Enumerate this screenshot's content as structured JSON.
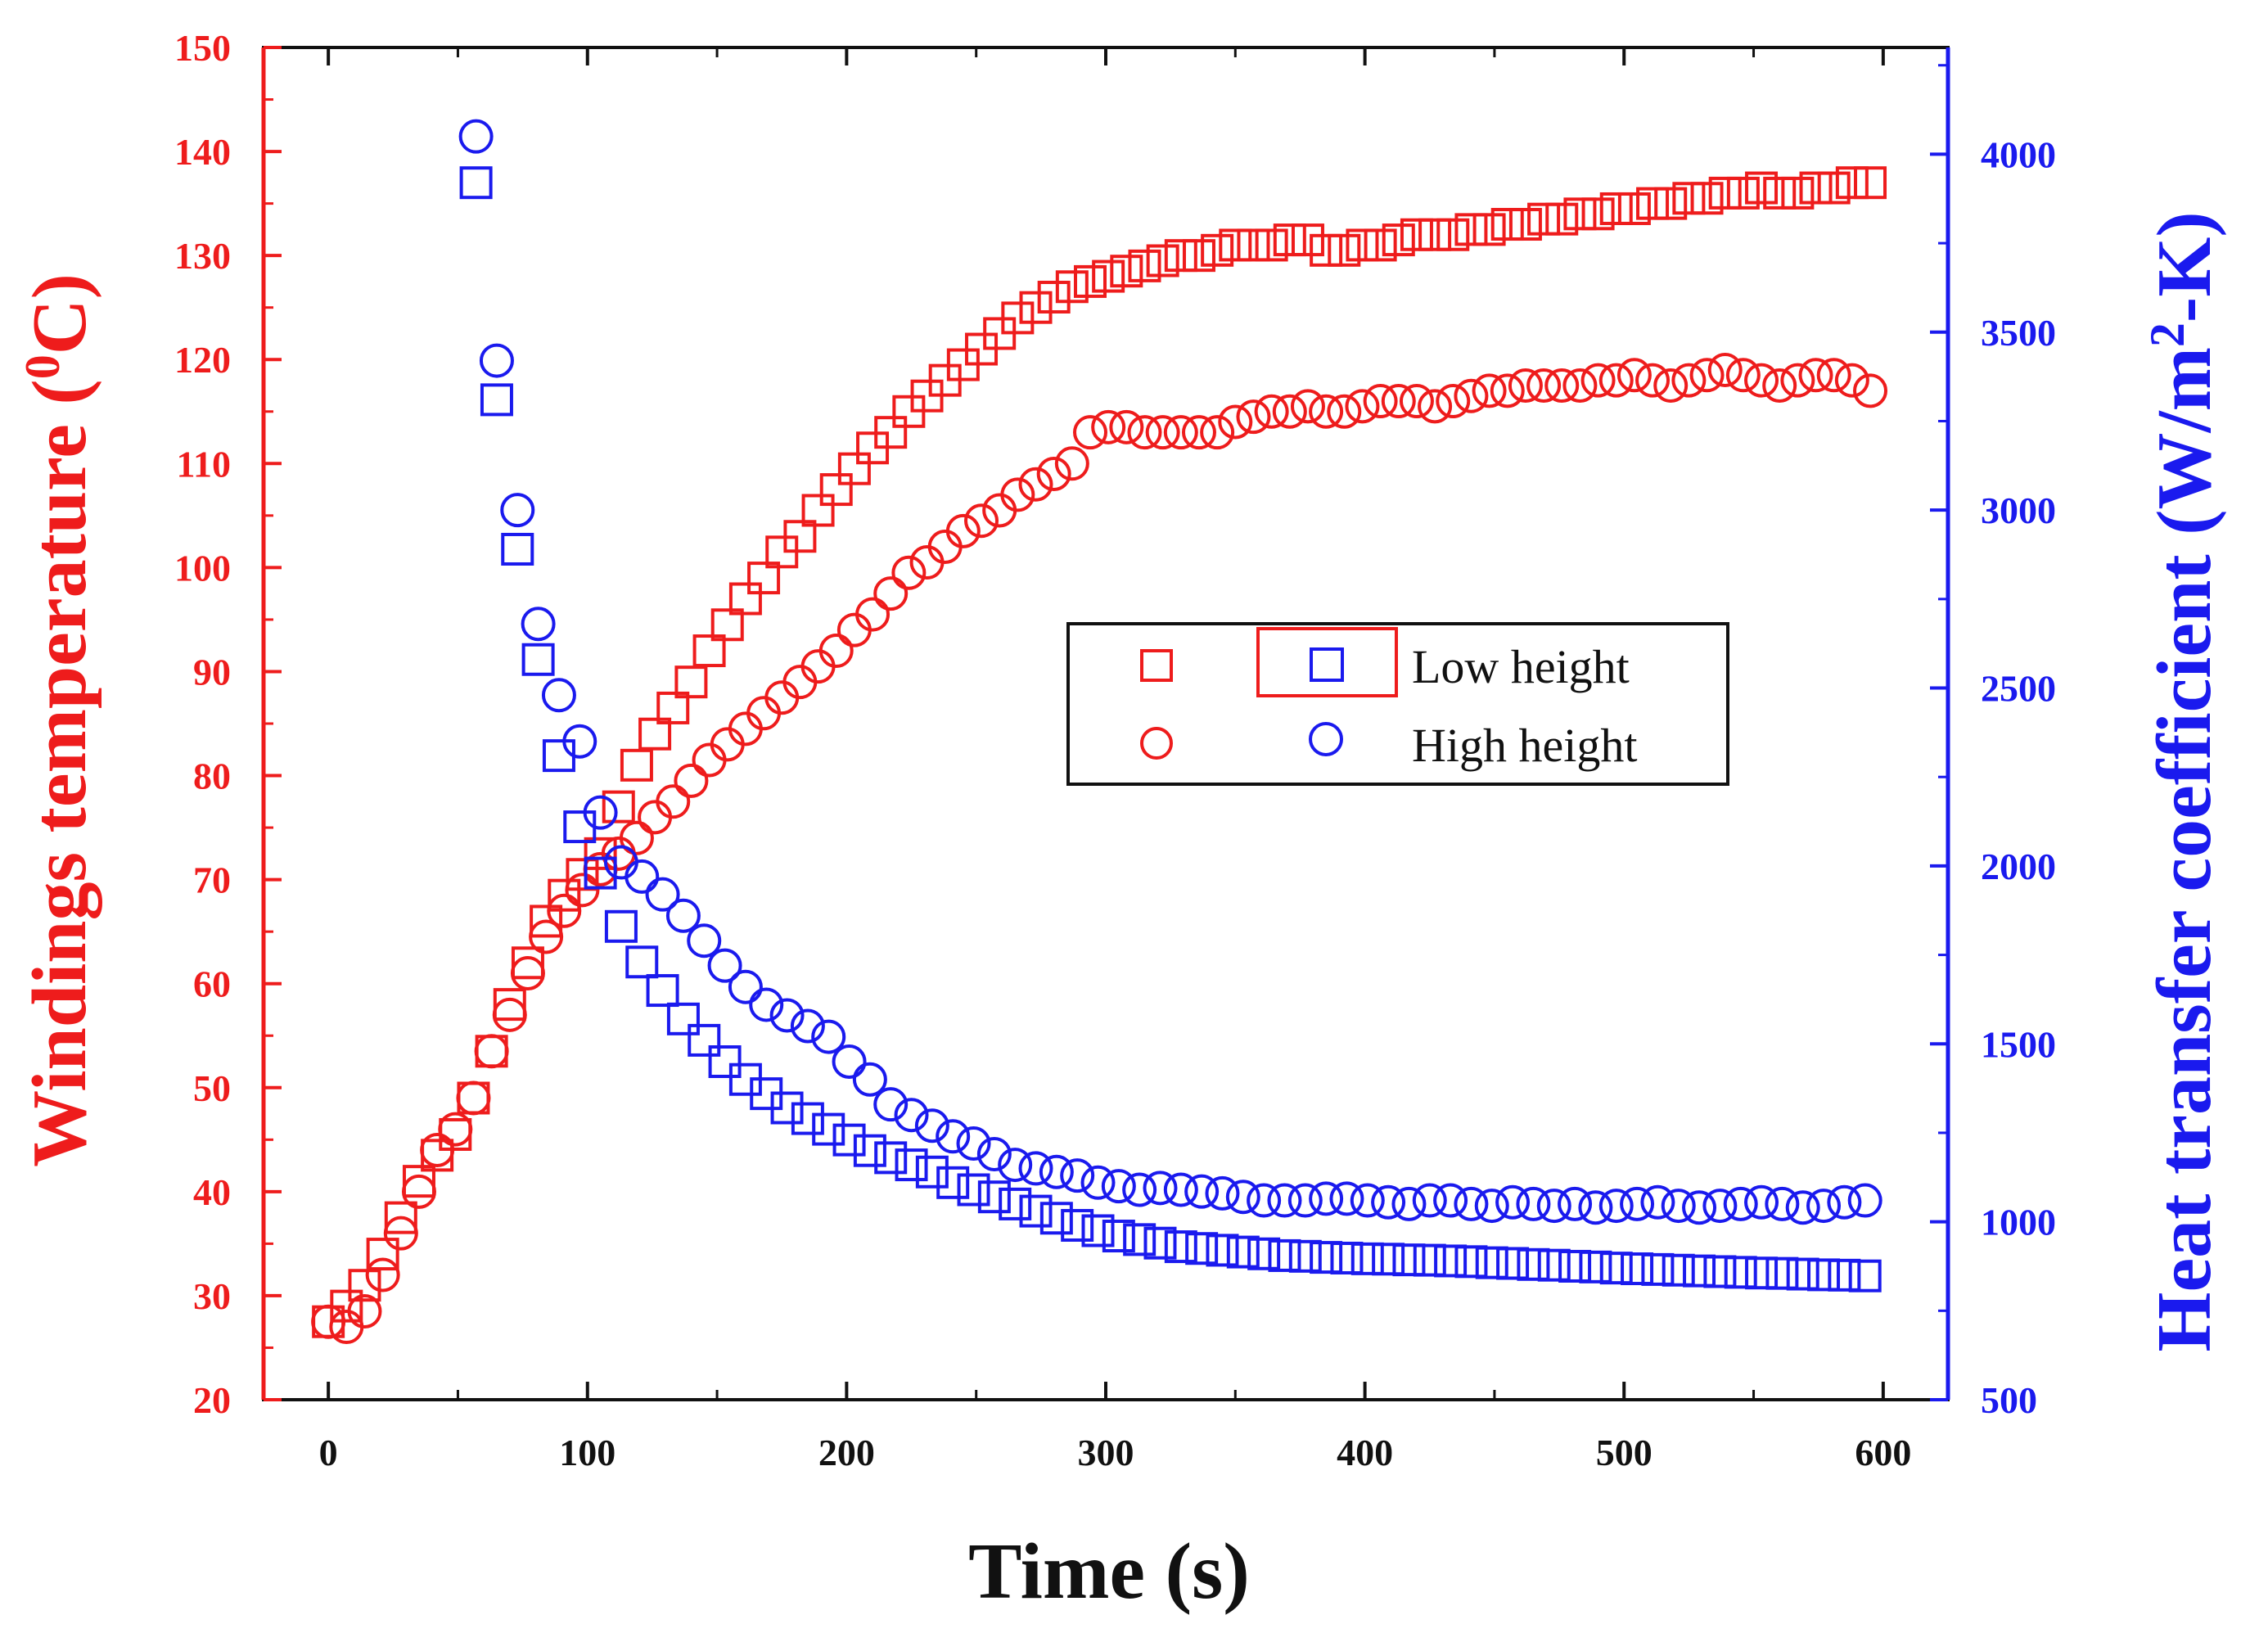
{
  "chart_data": {
    "type": "scatter",
    "title": "",
    "xlabel": "Time (s)",
    "ylabel_left": "Windings temperature (",
    "ylabel_left_sup": "0",
    "ylabel_left_tail": "C)",
    "ylabel_right": "Heat transfer coefficient (W/m",
    "ylabel_right_sup": "2",
    "ylabel_right_tail": "-K)",
    "xlim": [
      -25,
      625
    ],
    "ylim_left": [
      20,
      150
    ],
    "ylim_right": [
      500,
      4300
    ],
    "x_ticks": [
      "0",
      "100",
      "200",
      "300",
      "400",
      "500",
      "600"
    ],
    "y_left_ticks": [
      "20",
      "30",
      "40",
      "50",
      "60",
      "70",
      "80",
      "90",
      "100",
      "110",
      "120",
      "130",
      "140",
      "150"
    ],
    "y_right_ticks": [
      "500",
      "1000",
      "1500",
      "2000",
      "2500",
      "3000",
      "3500",
      "4000"
    ],
    "colors": {
      "temperature": "#ee1c1c",
      "htc": "#1a1aee",
      "axis": "#111111"
    },
    "legend": {
      "position": "center-right",
      "entries": [
        {
          "label": "Low height",
          "marker": "square"
        },
        {
          "label": "High height",
          "marker": "circle"
        }
      ]
    },
    "series": [
      {
        "name": "Windings temperature - Low height",
        "axis": "left",
        "marker": "square",
        "color": "#ee1c1c",
        "x": [
          0,
          7,
          14,
          21,
          28,
          35,
          42,
          49,
          56,
          63,
          70,
          77,
          84,
          91,
          98,
          105,
          112,
          119,
          126,
          133,
          140,
          147,
          154,
          161,
          168,
          175,
          182,
          189,
          196,
          203,
          210,
          217,
          224,
          231,
          238,
          245,
          252,
          259,
          266,
          273,
          280,
          287,
          294,
          301,
          308,
          315,
          322,
          329,
          336,
          343,
          350,
          357,
          364,
          371,
          378,
          385,
          392,
          399,
          406,
          413,
          420,
          427,
          434,
          441,
          448,
          455,
          462,
          469,
          476,
          483,
          490,
          497,
          504,
          511,
          518,
          525,
          532,
          539,
          546,
          553,
          560,
          567,
          574,
          581,
          588,
          595
        ],
        "y": [
          27.5,
          29,
          31,
          34,
          37.5,
          41,
          43.5,
          45.5,
          49,
          53.5,
          58,
          62,
          66,
          68.5,
          70.5,
          72.5,
          77,
          81,
          84,
          86.5,
          89,
          92,
          94.5,
          97,
          99,
          101.5,
          103,
          105.5,
          107.5,
          109.5,
          111.5,
          113,
          115,
          116.5,
          118,
          119.5,
          121,
          122.5,
          124,
          125,
          126,
          127,
          127.5,
          128,
          128.5,
          129,
          129.5,
          130,
          130,
          130.5,
          131,
          131,
          131,
          131.5,
          131.5,
          130.5,
          130.5,
          131,
          131,
          131.5,
          132,
          132,
          132,
          132.5,
          132.5,
          133,
          133,
          133.5,
          133.5,
          134,
          134,
          134.5,
          134.5,
          135,
          135,
          135.5,
          135.5,
          136,
          136,
          136.5,
          136,
          136,
          136.5,
          136.5,
          137,
          137
        ]
      },
      {
        "name": "Windings temperature - High height",
        "axis": "left",
        "marker": "circle",
        "color": "#ee1c1c",
        "x": [
          0,
          7,
          14,
          21,
          28,
          35,
          42,
          49,
          56,
          63,
          70,
          77,
          84,
          91,
          98,
          105,
          112,
          119,
          126,
          133,
          140,
          147,
          154,
          161,
          168,
          175,
          182,
          189,
          196,
          203,
          210,
          217,
          224,
          231,
          238,
          245,
          252,
          259,
          266,
          273,
          280,
          287,
          294,
          301,
          308,
          315,
          322,
          329,
          336,
          343,
          350,
          357,
          364,
          371,
          378,
          385,
          392,
          399,
          406,
          413,
          420,
          427,
          434,
          441,
          448,
          455,
          462,
          469,
          476,
          483,
          490,
          497,
          504,
          511,
          518,
          525,
          532,
          539,
          546,
          553,
          560,
          567,
          574,
          581,
          588,
          595
        ],
        "y": [
          27.5,
          27,
          28.5,
          32,
          36,
          40,
          44,
          46,
          49,
          53.5,
          57,
          61,
          64.5,
          67,
          69,
          71,
          72.5,
          74,
          76,
          77.5,
          79.5,
          81.5,
          83,
          84.5,
          86,
          87.5,
          89,
          90.5,
          92,
          94,
          95.5,
          97.5,
          99.5,
          100.5,
          102,
          103.5,
          104.5,
          105.5,
          107,
          108,
          109,
          110,
          113,
          113.5,
          113.5,
          113,
          113,
          113,
          113,
          113,
          114,
          114.5,
          115,
          115,
          115.5,
          115,
          115,
          115.5,
          116,
          116,
          116,
          115.5,
          116,
          116.5,
          117,
          117,
          117.5,
          117.5,
          117.5,
          117.5,
          118,
          118,
          118.5,
          118,
          117.5,
          118,
          118.5,
          119,
          118.5,
          118,
          117.5,
          118,
          118.5,
          118.5,
          118,
          117
        ]
      },
      {
        "name": "Heat transfer coefficient - Low height",
        "axis": "right",
        "marker": "square",
        "color": "#1a1aee",
        "x": [
          57,
          65,
          73,
          81,
          89,
          97,
          105,
          113,
          121,
          129,
          137,
          145,
          153,
          161,
          169,
          177,
          185,
          193,
          201,
          209,
          217,
          225,
          233,
          241,
          249,
          257,
          265,
          273,
          281,
          289,
          297,
          305,
          313,
          321,
          329,
          337,
          345,
          353,
          361,
          369,
          377,
          385,
          393,
          401,
          409,
          417,
          425,
          433,
          441,
          449,
          457,
          465,
          473,
          481,
          489,
          497,
          505,
          513,
          521,
          529,
          537,
          545,
          553,
          561,
          569,
          577,
          585,
          593
        ],
        "y": [
          3920,
          3310,
          2890,
          2580,
          2310,
          2110,
          1980,
          1830,
          1730,
          1650,
          1570,
          1510,
          1450,
          1400,
          1360,
          1320,
          1290,
          1260,
          1230,
          1200,
          1180,
          1160,
          1140,
          1110,
          1090,
          1070,
          1050,
          1030,
          1010,
          990,
          975,
          960,
          950,
          940,
          930,
          925,
          920,
          915,
          910,
          905,
          903,
          900,
          898,
          896,
          895,
          893,
          892,
          890,
          888,
          885,
          883,
          880,
          878,
          875,
          873,
          870,
          868,
          866,
          864,
          862,
          860,
          858,
          856,
          855,
          853,
          851,
          850,
          848
        ]
      },
      {
        "name": "Heat transfer coefficient - High height",
        "axis": "right",
        "marker": "circle",
        "color": "#1a1aee",
        "x": [
          57,
          65,
          73,
          81,
          89,
          97,
          105,
          113,
          121,
          129,
          137,
          145,
          153,
          161,
          169,
          177,
          185,
          193,
          201,
          209,
          217,
          225,
          233,
          241,
          249,
          257,
          265,
          273,
          281,
          289,
          297,
          305,
          313,
          321,
          329,
          337,
          345,
          353,
          361,
          369,
          377,
          385,
          393,
          401,
          409,
          417,
          425,
          433,
          441,
          449,
          457,
          465,
          473,
          481,
          489,
          497,
          505,
          513,
          521,
          529,
          537,
          545,
          553,
          561,
          569,
          577,
          585,
          593
        ],
        "y": [
          4050,
          3420,
          3000,
          2680,
          2480,
          2350,
          2150,
          2010,
          1970,
          1920,
          1860,
          1790,
          1720,
          1660,
          1610,
          1580,
          1550,
          1520,
          1450,
          1400,
          1330,
          1300,
          1270,
          1240,
          1220,
          1190,
          1160,
          1150,
          1140,
          1130,
          1110,
          1100,
          1090,
          1095,
          1090,
          1085,
          1080,
          1070,
          1060,
          1060,
          1060,
          1065,
          1065,
          1060,
          1055,
          1050,
          1060,
          1060,
          1050,
          1045,
          1055,
          1050,
          1045,
          1050,
          1040,
          1045,
          1050,
          1055,
          1045,
          1040,
          1045,
          1050,
          1055,
          1050,
          1040,
          1045,
          1055,
          1060
        ]
      }
    ]
  }
}
